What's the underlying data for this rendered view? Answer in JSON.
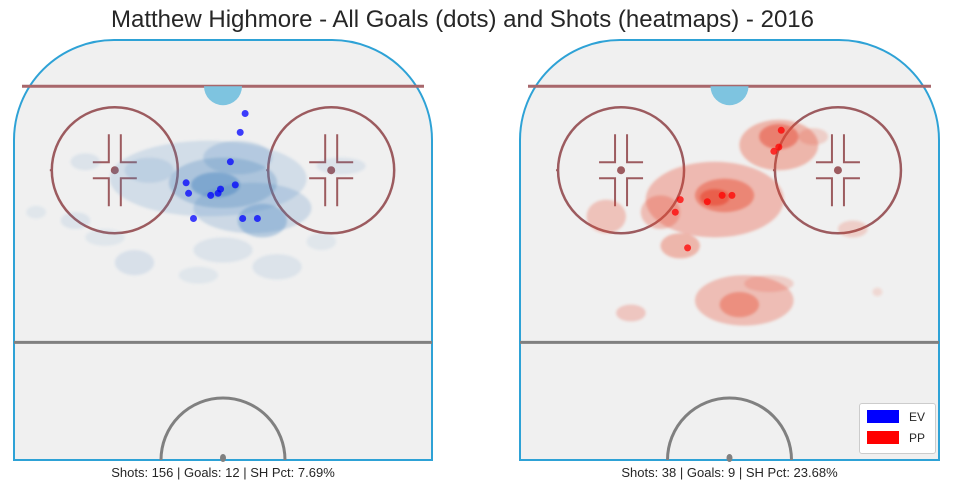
{
  "title": "Matthew Highmore - All Goals (dots) and Shots (heatmaps) - 2016",
  "colors": {
    "ev": "#0000ff",
    "pp": "#ff0000",
    "ev_heat": "#4a86c0",
    "pp_heat": "#e8482f",
    "rink_border": "#2ea2d6",
    "rink_fill": "#f0f0f0",
    "goal_line": "#a8676b",
    "circle": "#9c5b5f",
    "center_line": "#808080",
    "crease": "#7ec4e0"
  },
  "legend": [
    {
      "label": "EV",
      "color": "#0000ff",
      "icon": "ev-swatch"
    },
    {
      "label": "PP",
      "color": "#ff0000",
      "icon": "pp-swatch"
    }
  ],
  "chart_data": [
    {
      "type": "scatter",
      "situation": "EV",
      "caption": "Shots: 156 | Goals: 12 | SH Pct: 7.69%",
      "stats": {
        "shots": 156,
        "goals": 12,
        "sh_pct": 7.69
      },
      "grid": false,
      "note_units": "x = lateral feet from rink center (-42.5 to 42.5), y = feet from center ice toward goal end (0 to 89)",
      "xlim": [
        -42.5,
        42.5
      ],
      "ylim": [
        0,
        89
      ],
      "goals": [
        {
          "x": 4.5,
          "y": 82.5
        },
        {
          "x": 3.5,
          "y": 78
        },
        {
          "x": 1.5,
          "y": 71
        },
        {
          "x": -7.5,
          "y": 66
        },
        {
          "x": -2.5,
          "y": 63
        },
        {
          "x": -7,
          "y": 63.5
        },
        {
          "x": -0.5,
          "y": 64.5
        },
        {
          "x": -1,
          "y": 63.5
        },
        {
          "x": 2.5,
          "y": 65.5
        },
        {
          "x": 4,
          "y": 57.5
        },
        {
          "x": -6,
          "y": 57.5
        },
        {
          "x": 7,
          "y": 57.5
        }
      ]
    },
    {
      "type": "scatter",
      "situation": "PP",
      "caption": "Shots: 38 | Goals: 9 | SH Pct: 23.68%",
      "stats": {
        "shots": 38,
        "goals": 9,
        "sh_pct": 23.68
      },
      "grid": false,
      "note_units": "x = lateral feet from rink center (-42.5 to 42.5), y = feet from center ice toward goal end (0 to 89)",
      "xlim": [
        -42.5,
        42.5
      ],
      "ylim": [
        0,
        89
      ],
      "goals": [
        {
          "x": 10.5,
          "y": 78.5
        },
        {
          "x": 10,
          "y": 74.5
        },
        {
          "x": 9,
          "y": 73.5
        },
        {
          "x": -1.5,
          "y": 63
        },
        {
          "x": 0.5,
          "y": 63
        },
        {
          "x": -4.5,
          "y": 61.5
        },
        {
          "x": -10,
          "y": 62
        },
        {
          "x": -11,
          "y": 59
        },
        {
          "x": -8.5,
          "y": 50.5
        }
      ]
    }
  ]
}
